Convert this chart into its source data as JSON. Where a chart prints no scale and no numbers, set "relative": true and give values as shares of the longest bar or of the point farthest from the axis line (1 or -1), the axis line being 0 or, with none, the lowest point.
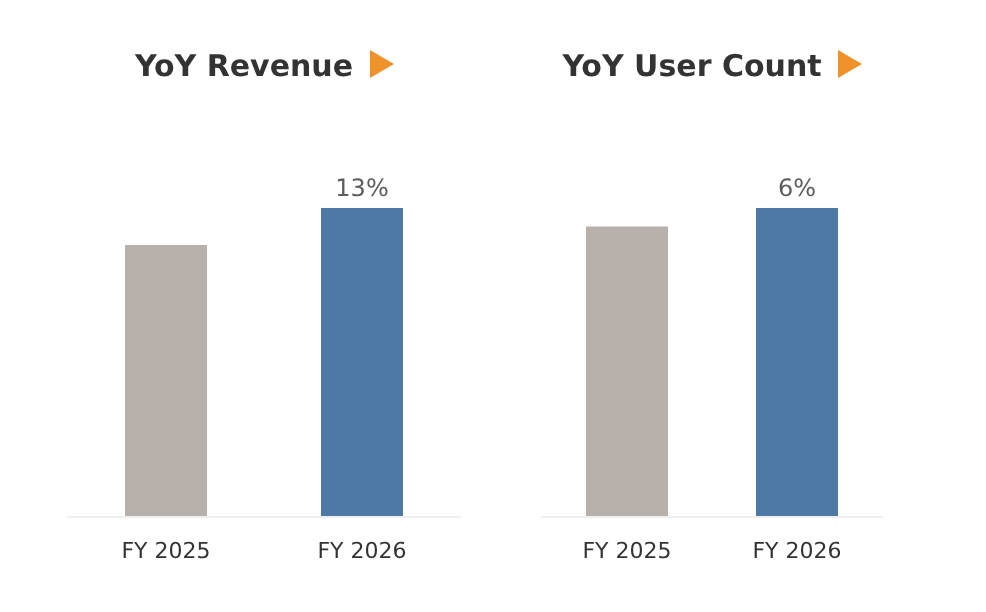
{
  "chart_data": [
    {
      "type": "bar",
      "title": "YoY Revenue",
      "categories": [
        "FY 2025",
        "FY 2026"
      ],
      "values": [
        0.88,
        1
      ],
      "colors": [
        "#b8b0ab",
        "#4e78a5"
      ],
      "relative": true,
      "annotations": [
        {
          "text": "13%",
          "x": "FY 2026",
          "y": 1
        }
      ]
    },
    {
      "type": "bar",
      "title": "YoY User Count",
      "categories": [
        "FY 2025",
        "FY 2026"
      ],
      "values": [
        0.94,
        1
      ],
      "colors": [
        "#b8b0ab",
        "#4e78a5"
      ],
      "relative": true,
      "annotations": [
        {
          "text": "6%",
          "x": "FY 2026",
          "y": 1
        }
      ]
    }
  ]
}
